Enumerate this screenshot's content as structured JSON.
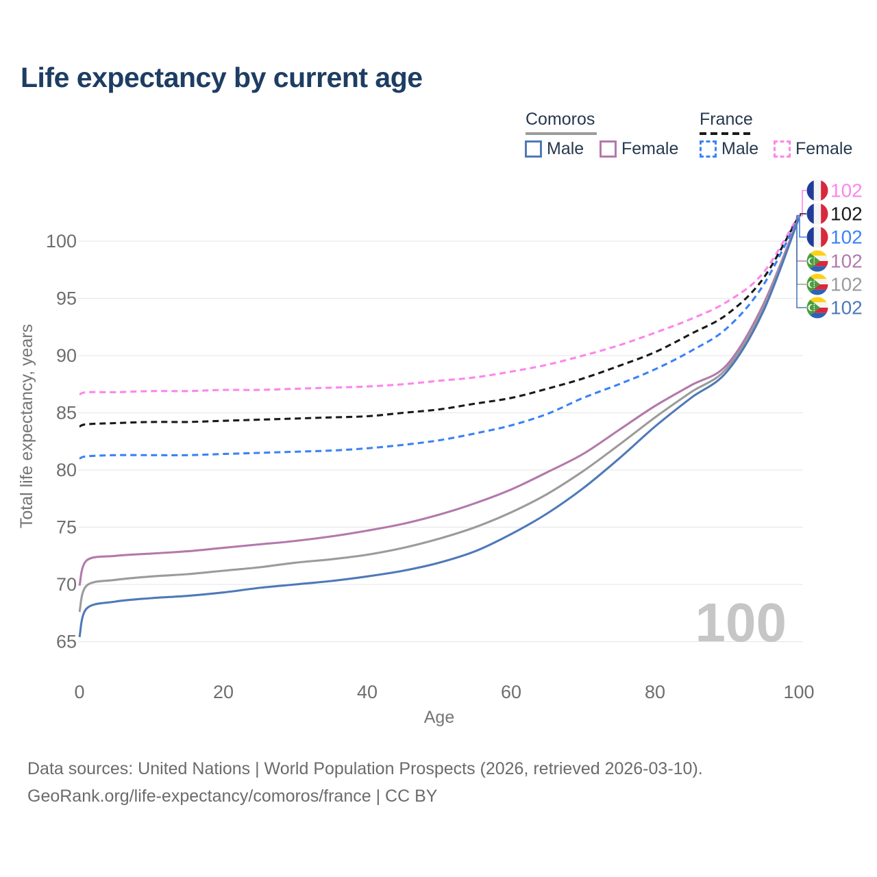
{
  "title": "Life expectancy by current age",
  "legend": {
    "groups": [
      {
        "name": "Comoros",
        "underline_style": "solid",
        "underline_color": "#9b9b9b",
        "items": [
          {
            "label": "Male",
            "color": "#4e79b8",
            "dash": false
          },
          {
            "label": "Female",
            "color": "#b379ab",
            "dash": false
          }
        ]
      },
      {
        "name": "France",
        "underline_style": "dashed",
        "underline_color": "#1a1a1a",
        "items": [
          {
            "label": "Male",
            "color": "#3b82f6",
            "dash": true
          },
          {
            "label": "Female",
            "color": "#fc86ea",
            "dash": true
          }
        ]
      }
    ]
  },
  "chart_data": {
    "type": "line",
    "title": "Life expectancy by current age",
    "xlabel": "Age",
    "ylabel": "Total life expectancy, years",
    "xlim": [
      0,
      100
    ],
    "ylim": [
      64,
      103
    ],
    "x_ticks": [
      0,
      20,
      40,
      60,
      80,
      100
    ],
    "y_ticks": [
      65,
      70,
      75,
      80,
      85,
      90,
      95,
      100
    ],
    "grid": "horizontal",
    "legend_position": "top-right",
    "watermark": "100",
    "x": [
      0,
      1,
      5,
      10,
      15,
      20,
      25,
      30,
      35,
      40,
      45,
      50,
      55,
      60,
      65,
      70,
      75,
      80,
      85,
      90,
      95,
      100
    ],
    "series": [
      {
        "name": "France Female",
        "country": "France",
        "sex": "Female",
        "color": "#fc86ea",
        "dash": true,
        "flag_icon": "france-flag-icon",
        "end_value": "102",
        "values": [
          86.6,
          86.8,
          86.8,
          86.9,
          86.9,
          87.0,
          87.0,
          87.1,
          87.2,
          87.3,
          87.5,
          87.8,
          88.1,
          88.6,
          89.2,
          90.0,
          90.9,
          92.0,
          93.2,
          94.7,
          97.2,
          102.3
        ]
      },
      {
        "name": "France Overall",
        "country": "France",
        "sex": "Overall",
        "color": "#1a1a1a",
        "dash": true,
        "flag_icon": "france-flag-icon",
        "end_value": "102",
        "values": [
          83.8,
          84.0,
          84.1,
          84.2,
          84.2,
          84.3,
          84.4,
          84.5,
          84.6,
          84.7,
          85.0,
          85.3,
          85.8,
          86.3,
          87.1,
          88.0,
          89.1,
          90.3,
          91.9,
          93.6,
          96.7,
          102.2
        ]
      },
      {
        "name": "France Male",
        "country": "France",
        "sex": "Male",
        "color": "#3b82f6",
        "dash": true,
        "flag_icon": "france-flag-icon",
        "end_value": "102",
        "values": [
          81.0,
          81.2,
          81.3,
          81.3,
          81.3,
          81.4,
          81.5,
          81.6,
          81.7,
          81.9,
          82.2,
          82.6,
          83.2,
          83.9,
          84.9,
          86.3,
          87.5,
          88.8,
          90.4,
          92.4,
          96.1,
          102.1
        ]
      },
      {
        "name": "Comoros Female",
        "country": "Comoros",
        "sex": "Female",
        "color": "#b379ab",
        "dash": false,
        "flag_icon": "comoros-flag-icon",
        "end_value": "102",
        "values": [
          69.9,
          72.1,
          72.5,
          72.7,
          72.9,
          73.2,
          73.5,
          73.8,
          74.2,
          74.7,
          75.3,
          76.1,
          77.1,
          78.3,
          79.8,
          81.4,
          83.5,
          85.6,
          87.4,
          89.2,
          94.4,
          102.1
        ]
      },
      {
        "name": "Comoros Overall",
        "country": "Comoros",
        "sex": "Overall",
        "color": "#9b9b9b",
        "dash": false,
        "flag_icon": "comoros-flag-icon",
        "end_value": "102",
        "values": [
          67.6,
          69.9,
          70.4,
          70.7,
          70.9,
          71.2,
          71.5,
          71.9,
          72.2,
          72.6,
          73.2,
          74.0,
          75.0,
          76.3,
          77.9,
          79.9,
          82.2,
          84.6,
          86.8,
          88.9,
          94.1,
          102.0
        ]
      },
      {
        "name": "Comoros Male",
        "country": "Comoros",
        "sex": "Male",
        "color": "#4e79b8",
        "dash": false,
        "flag_icon": "comoros-flag-icon",
        "end_value": "102",
        "values": [
          65.4,
          67.9,
          68.5,
          68.8,
          69.0,
          69.3,
          69.7,
          70.0,
          70.3,
          70.7,
          71.2,
          71.9,
          72.9,
          74.4,
          76.2,
          78.4,
          81.0,
          83.8,
          86.3,
          88.6,
          93.8,
          102.0
        ]
      }
    ]
  },
  "footer": {
    "line1": "Data sources: United Nations | World Population Prospects (2026, retrieved 2026-03-10).",
    "line2": "GeoRank.org/life-expectancy/comoros/france | CC BY"
  }
}
